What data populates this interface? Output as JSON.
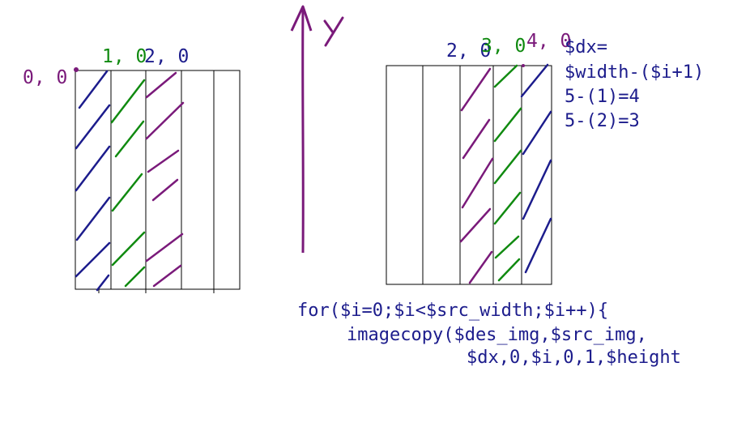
{
  "colors": {
    "navy": "#1c1c8c",
    "green": "#108a10",
    "purple": "#7a1a7a",
    "line": "#000000",
    "background": "#ffffff"
  },
  "axis": {
    "label": "Y"
  },
  "left_diagram": {
    "labels": [
      {
        "text": "0, 0",
        "color": "purple"
      },
      {
        "text": "1, 0",
        "color": "green"
      },
      {
        "text": "2, 0",
        "color": "navy"
      }
    ]
  },
  "right_diagram": {
    "labels": [
      {
        "text": "2, 0",
        "color": "navy"
      },
      {
        "text": "3, 0",
        "color": "green"
      },
      {
        "text": "4, 0",
        "color": "purple"
      }
    ]
  },
  "notes": [
    "$dx=",
    "$width-($i+1)",
    "5-(1)=4",
    "5-(2)=3"
  ],
  "code": [
    "for($i=0;$i<$src_width;$i++){",
    "imagecopy($des_img,$src_img,",
    "$dx,0,$i,0,1,$height"
  ]
}
